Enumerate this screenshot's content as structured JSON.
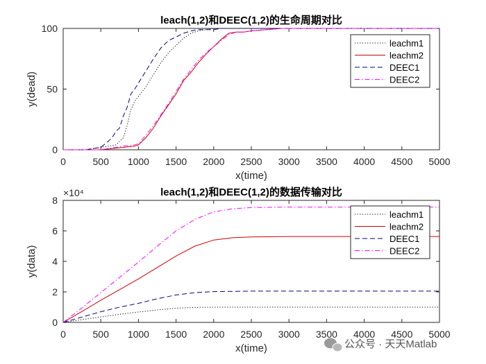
{
  "watermark": "公众号 · 天天Matlab",
  "chart_data": [
    {
      "type": "line",
      "title": "leach(1,2)和DEEC(1,2)的生命周期对比",
      "xlabel": "x(time)",
      "ylabel": "y(dead)",
      "xlim": [
        0,
        5000
      ],
      "ylim": [
        0,
        100
      ],
      "xticks": [
        "0",
        "500",
        "1000",
        "1500",
        "2000",
        "2500",
        "3000",
        "3500",
        "4000",
        "4500",
        "5000"
      ],
      "yticks": [
        "0",
        "50",
        "100"
      ],
      "exponent_label": "",
      "legend_position": "top-right",
      "series": [
        {
          "name": "leachm1",
          "color": "#000000",
          "style": "dotted",
          "x": [
            0,
            300,
            500,
            600,
            700,
            750,
            800,
            850,
            900,
            950,
            1000,
            1100,
            1200,
            1300,
            1400,
            1500,
            1600,
            1700,
            1800,
            1900,
            2000,
            2200,
            2500,
            5000
          ],
          "y": [
            0,
            0,
            2,
            3,
            4,
            7,
            10,
            20,
            33,
            40,
            44,
            52,
            62,
            72,
            80,
            86,
            92,
            96,
            98,
            99,
            100,
            100,
            100,
            100
          ]
        },
        {
          "name": "leachm2",
          "color": "#cc0000",
          "style": "solid",
          "x": [
            0,
            500,
            800,
            950,
            1000,
            1100,
            1200,
            1300,
            1400,
            1500,
            1600,
            1700,
            1800,
            1900,
            2000,
            2100,
            2200,
            2300,
            2400,
            2500,
            2700,
            2900,
            5000
          ],
          "y": [
            0,
            0,
            2,
            3,
            4,
            10,
            18,
            28,
            37,
            46,
            57,
            64,
            72,
            79,
            85,
            91,
            96,
            97,
            97,
            98,
            99,
            100,
            100
          ]
        },
        {
          "name": "DEEC1",
          "color": "#00007f",
          "style": "dashed",
          "x": [
            0,
            300,
            500,
            600,
            650,
            700,
            750,
            800,
            850,
            900,
            950,
            1000,
            1100,
            1200,
            1300,
            1400,
            1500,
            1600,
            1700,
            1800,
            1900,
            2000,
            2100,
            2500,
            5000
          ],
          "y": [
            0,
            0,
            2,
            7,
            10,
            15,
            18,
            28,
            35,
            46,
            50,
            55,
            65,
            75,
            84,
            90,
            93,
            96,
            98,
            99,
            99,
            99,
            100,
            100,
            100
          ]
        },
        {
          "name": "DEEC2",
          "color": "#ff00ff",
          "style": "dashdot",
          "x": [
            0,
            500,
            800,
            950,
            1000,
            1100,
            1200,
            1300,
            1400,
            1500,
            1600,
            1700,
            1800,
            1900,
            2000,
            2100,
            2200,
            2300,
            2400,
            2500,
            2700,
            2900,
            5000
          ],
          "y": [
            0,
            0,
            3,
            4,
            5,
            12,
            20,
            29,
            38,
            48,
            58,
            66,
            74,
            80,
            85,
            90,
            95,
            97,
            97,
            98,
            99,
            100,
            100
          ]
        }
      ]
    },
    {
      "type": "line",
      "title": "leach(1,2)和DEEC(1,2)的数据传输对比",
      "xlabel": "x(time)",
      "ylabel": "y(data)",
      "xlim": [
        0,
        5000
      ],
      "ylim": [
        0,
        80000
      ],
      "xticks": [
        "0",
        "500",
        "1000",
        "1500",
        "2000",
        "2500",
        "3000",
        "3500",
        "4000",
        "4500",
        "5000"
      ],
      "yticks": [
        "0",
        "2",
        "4",
        "6",
        "8"
      ],
      "exponent_label": "×10⁴",
      "legend_position": "top-right",
      "series": [
        {
          "name": "leachm1",
          "color": "#000000",
          "style": "dotted",
          "x": [
            0,
            250,
            500,
            750,
            1000,
            1250,
            1500,
            1750,
            2000,
            2500,
            3000,
            5000
          ],
          "y": [
            0,
            1800,
            3600,
            5300,
            6800,
            8200,
            9300,
            9800,
            10000,
            10000,
            10000,
            10000
          ]
        },
        {
          "name": "leachm2",
          "color": "#cc0000",
          "style": "solid",
          "x": [
            0,
            250,
            500,
            750,
            1000,
            1250,
            1500,
            1750,
            2000,
            2250,
            2500,
            3000,
            5000
          ],
          "y": [
            0,
            7200,
            14500,
            21500,
            28500,
            36000,
            43500,
            50000,
            54000,
            55500,
            56000,
            56300,
            56300
          ]
        },
        {
          "name": "DEEC1",
          "color": "#00007f",
          "style": "dashed",
          "x": [
            0,
            250,
            500,
            750,
            1000,
            1250,
            1500,
            1750,
            2000,
            2500,
            3000,
            5000
          ],
          "y": [
            0,
            3500,
            7000,
            10000,
            12500,
            15500,
            18000,
            19500,
            20200,
            20500,
            20500,
            20500
          ]
        },
        {
          "name": "DEEC2",
          "color": "#ff00ff",
          "style": "dashdot",
          "x": [
            0,
            250,
            500,
            750,
            1000,
            1250,
            1500,
            1750,
            2000,
            2250,
            2500,
            3000,
            5000
          ],
          "y": [
            0,
            9500,
            19500,
            29500,
            39500,
            50000,
            60000,
            67500,
            72500,
            74500,
            75300,
            75600,
            75600
          ]
        }
      ]
    }
  ]
}
